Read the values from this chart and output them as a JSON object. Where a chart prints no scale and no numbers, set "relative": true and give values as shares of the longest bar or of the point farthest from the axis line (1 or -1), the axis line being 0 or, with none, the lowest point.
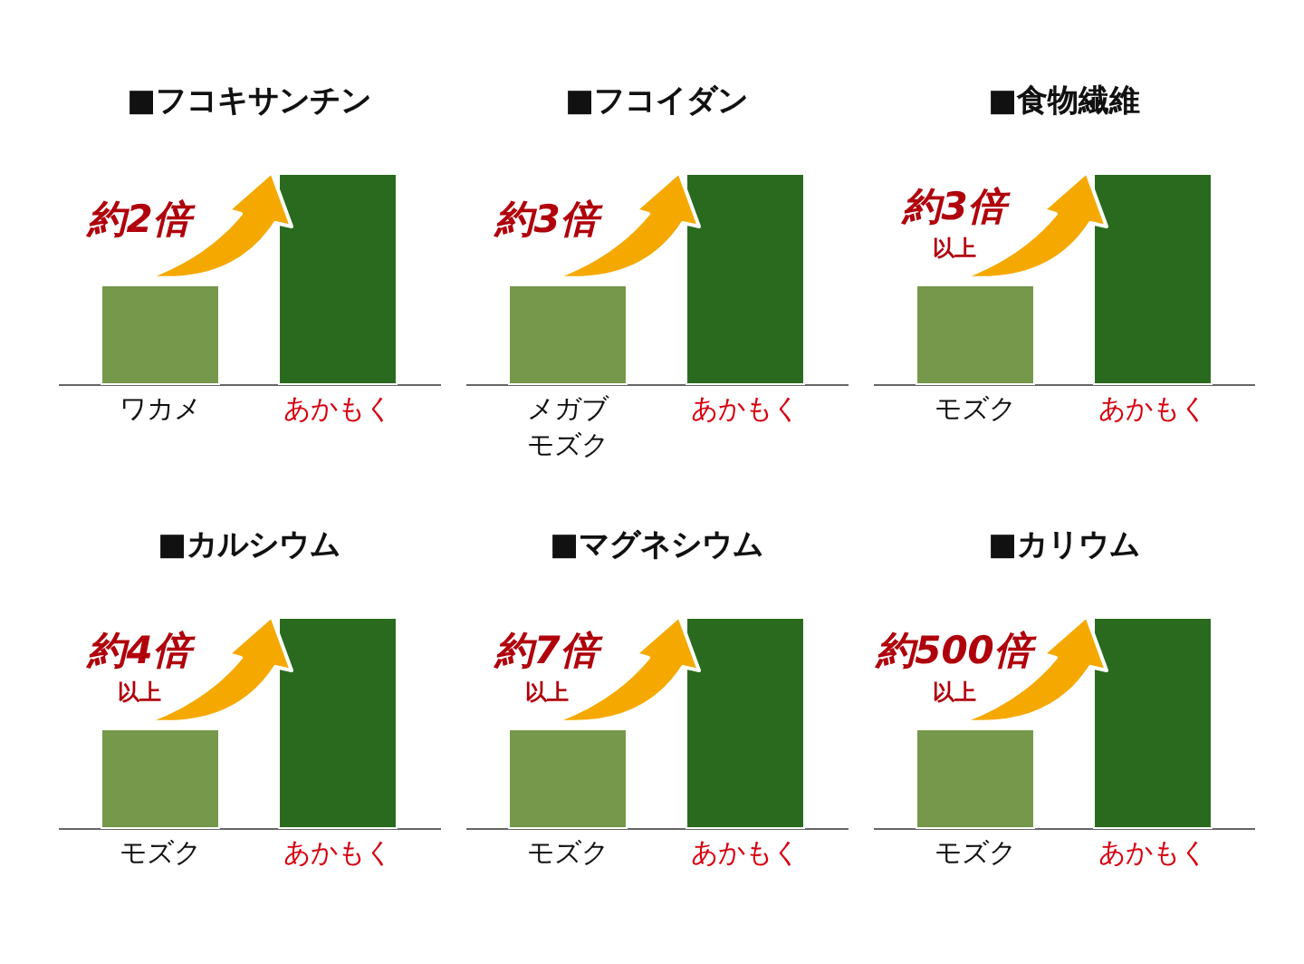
{
  "chart_data": [
    {
      "type": "bar",
      "title": "■フコキサンチン",
      "categories": [
        "ワカメ",
        "あかもく"
      ],
      "values": [
        0.47,
        1
      ],
      "colors": [
        "#76984a",
        "#2a6a1e"
      ],
      "relative": true,
      "annotations": [
        "約2倍"
      ]
    },
    {
      "type": "bar",
      "title": "■フコイダン",
      "categories": [
        "メガブモズク",
        "あかもく"
      ],
      "values": [
        0.47,
        1
      ],
      "colors": [
        "#76984a",
        "#2a6a1e"
      ],
      "relative": true,
      "annotations": [
        "約3倍"
      ]
    },
    {
      "type": "bar",
      "title": "■食物繊維",
      "categories": [
        "モズク",
        "あかもく"
      ],
      "values": [
        0.47,
        1
      ],
      "colors": [
        "#76984a",
        "#2a6a1e"
      ],
      "relative": true,
      "annotations": [
        "約3倍",
        "以上"
      ]
    },
    {
      "type": "bar",
      "title": "■カルシウム",
      "categories": [
        "モズク",
        "あかもく"
      ],
      "values": [
        0.47,
        1
      ],
      "colors": [
        "#76984a",
        "#2a6a1e"
      ],
      "relative": true,
      "annotations": [
        "約4倍",
        "以上"
      ]
    },
    {
      "type": "bar",
      "title": "■マグネシウム",
      "categories": [
        "モズク",
        "あかもく"
      ],
      "values": [
        0.47,
        1
      ],
      "colors": [
        "#76984a",
        "#2a6a1e"
      ],
      "relative": true,
      "annotations": [
        "約7倍",
        "以上"
      ]
    },
    {
      "type": "bar",
      "title": "■カリウム",
      "categories": [
        "モズク",
        "あかもく"
      ],
      "values": [
        0.47,
        1
      ],
      "colors": [
        "#76984a",
        "#2a6a1e"
      ],
      "relative": true,
      "annotations": [
        "約500倍",
        "以上"
      ]
    }
  ]
}
